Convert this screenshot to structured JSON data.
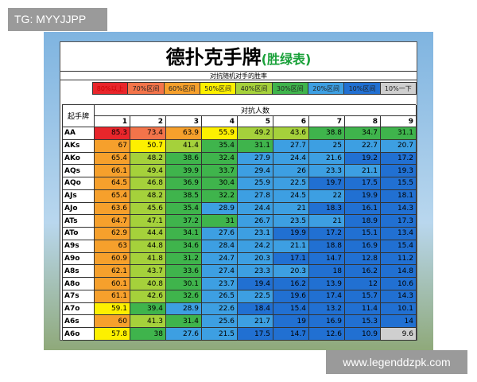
{
  "watermark": "TG: MYYJJPP",
  "site": "www.legenddzpk.com",
  "header": {
    "title": "德扑克手牌",
    "title_note": "(胜绿表)",
    "subtitle": "对抗随机对手的胜率"
  },
  "legend": [
    {
      "label": "80%以上",
      "color": "#e8262b",
      "min": 80
    },
    {
      "label": "70%区间",
      "color": "#f3744a",
      "min": 70
    },
    {
      "label": "60%区间",
      "color": "#f6a02c",
      "min": 60
    },
    {
      "label": "50%区间",
      "color": "#fdf000",
      "min": 50
    },
    {
      "label": "40%区间",
      "color": "#a5d13b",
      "min": 40
    },
    {
      "label": "30%区间",
      "color": "#3fb44c",
      "min": 30
    },
    {
      "label": "20%区间",
      "color": "#3d9fe2",
      "min": 20
    },
    {
      "label": "10%区间",
      "color": "#2170d2",
      "min": 10
    },
    {
      "label": "10%一下",
      "color": "#cfcfcf"
    }
  ],
  "table": {
    "corner": "起手牌",
    "group_header": "对抗人数",
    "columns": [
      1,
      2,
      3,
      4,
      5,
      6,
      7,
      8,
      9
    ],
    "rows": [
      {
        "hand": "AA",
        "values": [
          85.3,
          73.4,
          63.9,
          55.9,
          49.2,
          43.6,
          38.8,
          34.7,
          31.1
        ]
      },
      {
        "hand": "AKs",
        "values": [
          67,
          50.7,
          41.4,
          35.4,
          31.1,
          27.7,
          25,
          22.7,
          20.7
        ]
      },
      {
        "hand": "AKo",
        "values": [
          65.4,
          48.2,
          38.6,
          32.4,
          27.9,
          24.4,
          21.6,
          19.2,
          17.2
        ]
      },
      {
        "hand": "AQs",
        "values": [
          66.1,
          49.4,
          39.9,
          33.7,
          29.4,
          26,
          23.3,
          21.1,
          19.3
        ]
      },
      {
        "hand": "AQo",
        "values": [
          64.5,
          46.8,
          36.9,
          30.4,
          25.9,
          22.5,
          19.7,
          17.5,
          15.5
        ]
      },
      {
        "hand": "AJs",
        "values": [
          65.4,
          48.2,
          38.5,
          32.2,
          27.8,
          24.5,
          22,
          19.9,
          18.1
        ]
      },
      {
        "hand": "AJo",
        "values": [
          63.6,
          45.6,
          35.4,
          28.9,
          24.4,
          21,
          18.3,
          16.1,
          14.3
        ]
      },
      {
        "hand": "ATs",
        "values": [
          64.7,
          47.1,
          37.2,
          31,
          26.7,
          23.5,
          21,
          18.9,
          17.3
        ]
      },
      {
        "hand": "ATo",
        "values": [
          62.9,
          44.4,
          34.1,
          27.6,
          23.1,
          19.9,
          17.2,
          15.1,
          13.4
        ]
      },
      {
        "hand": "A9s",
        "values": [
          63,
          44.8,
          34.6,
          28.4,
          24.2,
          21.1,
          18.8,
          16.9,
          15.4
        ]
      },
      {
        "hand": "A9o",
        "values": [
          60.9,
          41.8,
          31.2,
          24.7,
          20.3,
          17.1,
          14.7,
          12.8,
          11.2
        ]
      },
      {
        "hand": "A8s",
        "values": [
          62.1,
          43.7,
          33.6,
          27.4,
          23.3,
          20.3,
          18,
          16.2,
          14.8
        ]
      },
      {
        "hand": "A8o",
        "values": [
          60.1,
          40.8,
          30.1,
          23.7,
          19.4,
          16.2,
          13.9,
          12,
          10.6
        ]
      },
      {
        "hand": "A7s",
        "values": [
          61.1,
          42.6,
          32.6,
          26.5,
          22.5,
          19.6,
          17.4,
          15.7,
          14.3
        ]
      },
      {
        "hand": "A7o",
        "values": [
          59.1,
          39.4,
          28.9,
          22.6,
          18.4,
          15.4,
          13.2,
          11.4,
          10.1
        ]
      },
      {
        "hand": "A6s",
        "values": [
          60,
          41.3,
          31.4,
          25.6,
          21.7,
          19,
          16.9,
          15.3,
          14
        ]
      },
      {
        "hand": "A6o",
        "values": [
          57.8,
          38,
          27.6,
          21.5,
          17.5,
          14.7,
          12.6,
          10.9,
          9.6
        ]
      }
    ]
  }
}
